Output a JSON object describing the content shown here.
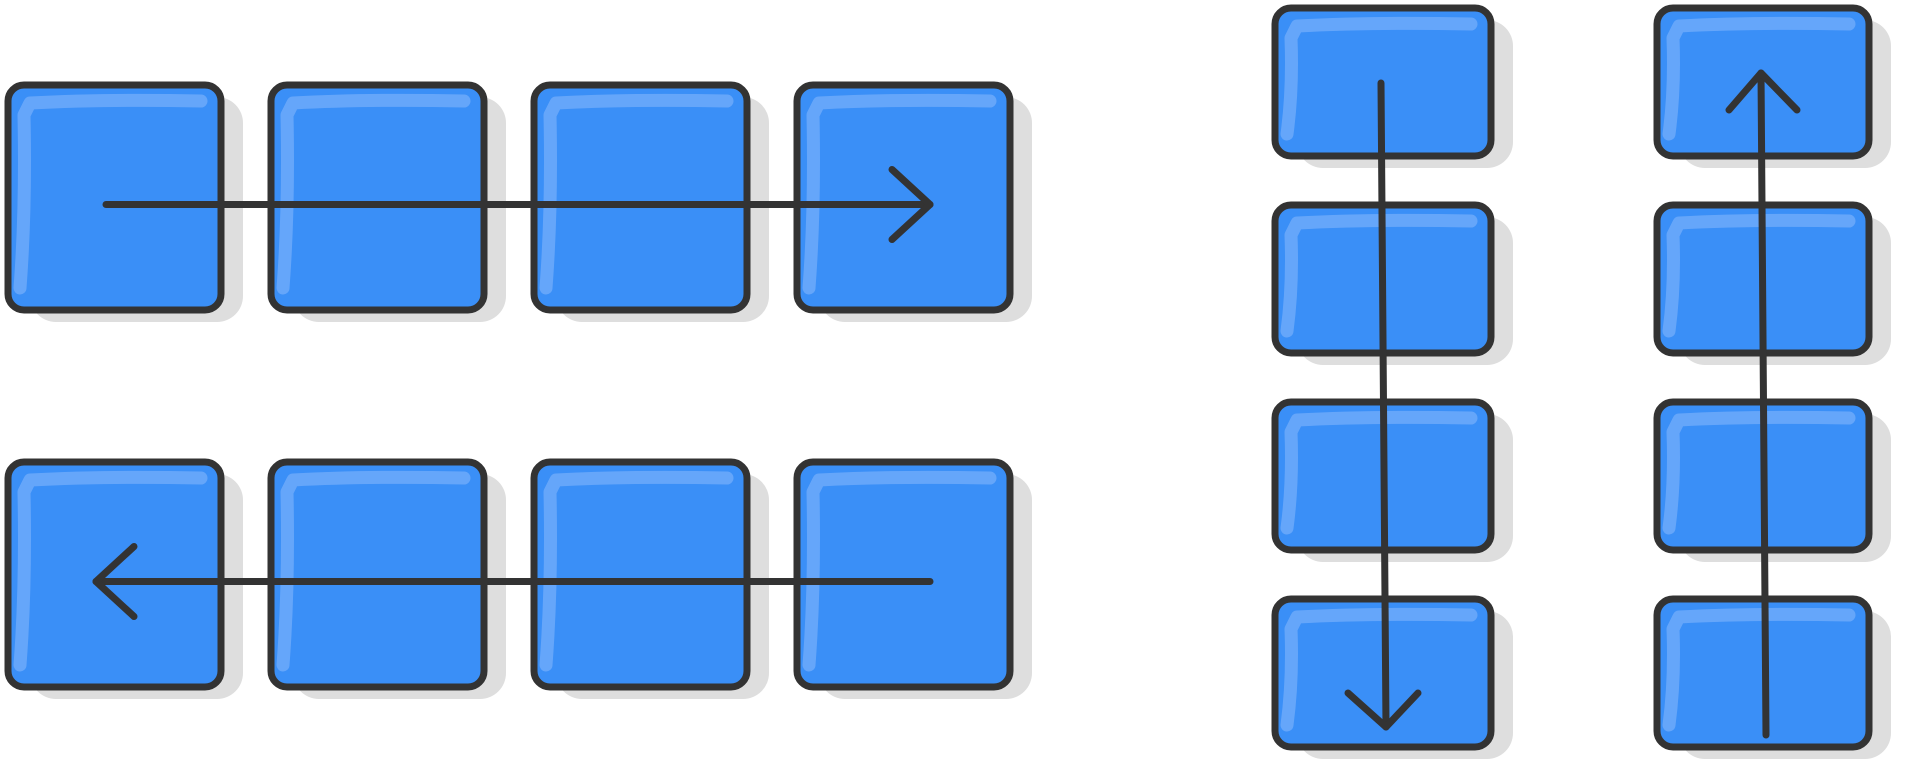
{
  "colors": {
    "box_fill": "#3a8ff7",
    "box_highlight": "#6aa9f9",
    "outline": "#333333",
    "shadow": "#dedede",
    "background": "#ffffff"
  },
  "groups": [
    {
      "name": "row-left-to-right",
      "orientation": "horizontal",
      "boxes": 4,
      "arrow_direction": "right"
    },
    {
      "name": "row-right-to-left",
      "orientation": "horizontal",
      "boxes": 4,
      "arrow_direction": "left"
    },
    {
      "name": "column-top-to-bottom",
      "orientation": "vertical",
      "boxes": 4,
      "arrow_direction": "down"
    },
    {
      "name": "column-bottom-to-top",
      "orientation": "vertical",
      "boxes": 4,
      "arrow_direction": "up"
    }
  ]
}
